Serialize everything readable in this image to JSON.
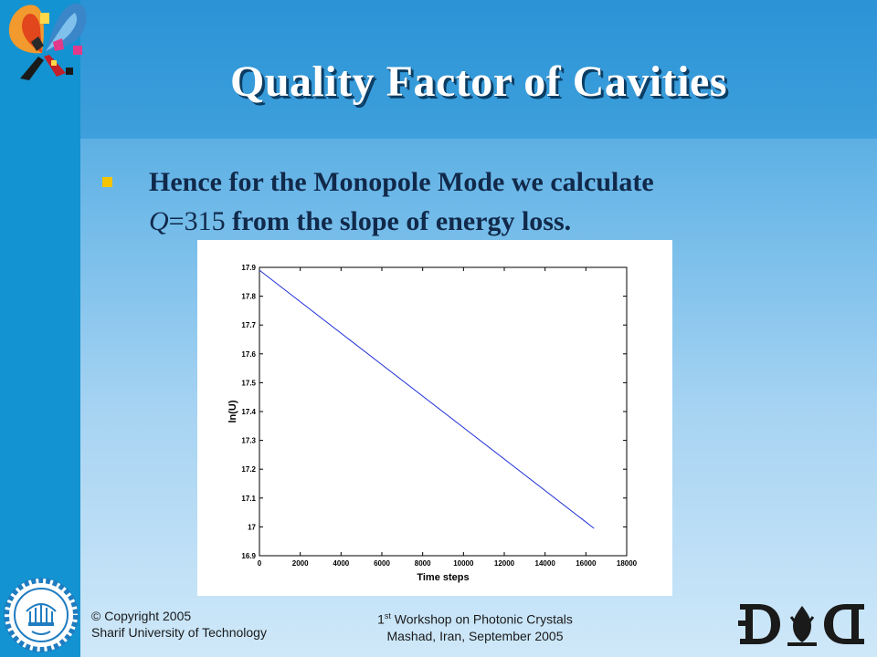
{
  "slide": {
    "title": "Quality Factor of Cavities",
    "bullet": {
      "line1": "Hence for the Monopole Mode we calculate",
      "q_symbol": "Q",
      "q_value": "=315",
      "line2_rest": " from the slope of energy loss."
    }
  },
  "chart_data": {
    "type": "line",
    "xlabel": "Time steps",
    "ylabel": "ln(U)",
    "xlim": [
      0,
      18000
    ],
    "ylim": [
      16.9,
      17.9
    ],
    "x_ticks": [
      "0",
      "2000",
      "4000",
      "6000",
      "8000",
      "10000",
      "12000",
      "14000",
      "16000",
      "18000"
    ],
    "y_ticks": [
      "16.9",
      "17",
      "17.1",
      "17.2",
      "17.3",
      "17.4",
      "17.5",
      "17.6",
      "17.7",
      "17.8",
      "17.9"
    ],
    "series": [
      {
        "color": "#1f2fd6",
        "x": [
          0,
          16400
        ],
        "y": [
          17.89,
          16.995
        ]
      }
    ],
    "grid": false
  },
  "footer": {
    "copyright_line1": "© Copyright 2005",
    "copyright_line2": "Sharif University of Technology",
    "workshop_ordinal": "1",
    "workshop_sup": "st",
    "workshop_rest": " Workshop on Photonic Crystals",
    "location": "Mashad, Iran, September 2005"
  },
  "colors": {
    "title_text": "#ffffff",
    "title_shadow": "#0b3d63",
    "bullet_marker": "#f5c400",
    "body_text": "#11294a",
    "side_strip": "#1393d1"
  },
  "icons": {
    "top_left_logo": "butterfly-logo-icon",
    "bottom_left_logo": "university-seal-icon",
    "bottom_right_logo": "dig-logo-icon"
  }
}
